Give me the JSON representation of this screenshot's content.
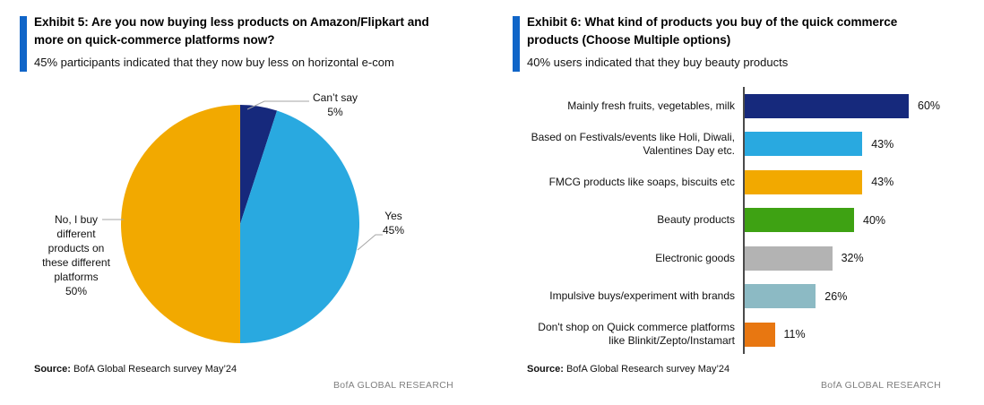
{
  "page": {
    "accent_color": "#1065C8",
    "watermark": "BofA GLOBAL RESEARCH"
  },
  "left_panel": {
    "exhibit_title": "Exhibit 5: Are you now buying less products on Amazon/Flipkart and\nmore on quick-commerce platforms now?",
    "subtitle": "45% participants indicated that they now buy less on horizontal e-com",
    "source_label": "Source:",
    "source_text": "BofA Global Research survey May’24",
    "watermark": "BofA GLOBAL RESEARCH"
  },
  "right_panel": {
    "exhibit_title": "Exhibit 6: What kind of products you buy of the quick commerce\nproducts (Choose Multiple options)",
    "subtitle": "40% users indicated that they buy beauty products",
    "source_label": "Source:",
    "source_text": "BofA Global Research survey May’24",
    "watermark": "BofA GLOBAL RESEARCH"
  },
  "chart_data": [
    {
      "type": "pie",
      "title": "Are you now buying less products on Amazon/Flipkart and more on quick-commerce platforms now?",
      "labels": [
        "Can’t say",
        "Yes",
        "No, I buy different products on these different platforms"
      ],
      "values": [
        5,
        45,
        50
      ],
      "unit": "%",
      "colors": [
        "#16297C",
        "#29A9E0",
        "#F2A900"
      ],
      "start": "12 o'clock",
      "direction": "clockwise",
      "callouts": [
        "Can’t say\n5%",
        "Yes\n45%",
        "No, I buy\ndifferent\nproducts on\nthese different\nplatforms\n50%"
      ],
      "legend_position": "none"
    },
    {
      "type": "bar",
      "orientation": "horizontal",
      "title": "What kind of products you buy of the quick commerce products (Choose Multiple options)",
      "categories": [
        "Mainly fresh fruits, vegetables, milk",
        "Based on Festivals/events like Holi, Diwali,\nValentines Day etc.",
        "FMCG products like soaps, biscuits etc",
        "Beauty products",
        "Electronic goods",
        "Impulsive buys/experiment with brands",
        "Don't shop on Quick commerce platforms\nlike Blinkit/Zepto/Instamart"
      ],
      "values": [
        60,
        43,
        43,
        40,
        32,
        26,
        11
      ],
      "value_labels": [
        "60%",
        "43%",
        "43%",
        "40%",
        "32%",
        "26%",
        "11%"
      ],
      "colors": [
        "#16297C",
        "#29A9E0",
        "#F2A900",
        "#3EA213",
        "#B3B3B3",
        "#8CBAC4",
        "#E87711"
      ],
      "unit": "%",
      "xlim": [
        0,
        65
      ],
      "grid": false,
      "legend_position": "none"
    }
  ]
}
